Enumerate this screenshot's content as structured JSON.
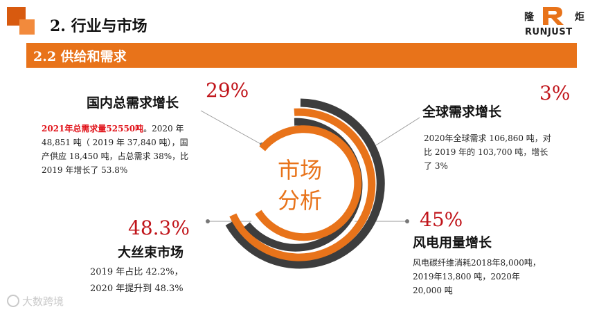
{
  "header": {
    "title": "2. 行业与市场",
    "section": "2.2 供给和需求"
  },
  "logo": {
    "cn_left": "隆",
    "cn_right": "炬",
    "en": "RUNJUST",
    "mark_letter": "R",
    "brand_color": "#e8731a"
  },
  "center": {
    "line1": "市场",
    "line2": "分析"
  },
  "blocks": {
    "domestic": {
      "percent": "29%",
      "title": "国内总需求增长",
      "highlight": "2021年总需求量52550吨",
      "body": "。2020 年 48,851 吨（ 2019 年 37,840 吨），国产供应 18,450 吨，占总需求 38%，比 2019 年增长了 53.8%"
    },
    "global": {
      "percent": "3%",
      "title": "全球需求增长",
      "body": "2020年全球需求 106,860 吨，对比 2019 年的 103,700 吨，增长了 3%"
    },
    "tow": {
      "percent": "48.3%",
      "title": "大丝束市场",
      "line1": "2019 年占比 42.2%，",
      "line2": "2020 年提升到 48.3%"
    },
    "wind": {
      "percent": "45%",
      "title": "风电用量增长",
      "body": "风电碳纤维消耗2018年8,000吨，2019年13,800 吨，2020年20,000 吨"
    }
  },
  "watermark": "大数跨境",
  "colors": {
    "orange": "#e8731a",
    "dark": "#3d3d3d",
    "red": "#c0141a"
  }
}
